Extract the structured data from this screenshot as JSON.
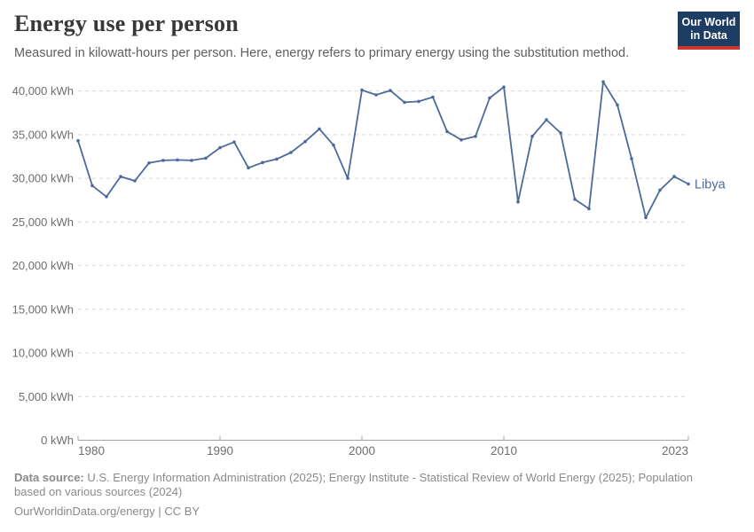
{
  "header": {
    "title": "Energy use per person",
    "subtitle": "Measured in kilowatt-hours per person. Here, energy refers to primary energy using the substitution method.",
    "logo": {
      "line1": "Our World",
      "line2": "in Data"
    }
  },
  "chart_data": {
    "type": "line",
    "title": "Energy use per person",
    "unit": "kWh",
    "xlim": [
      1980,
      2023
    ],
    "ylim": [
      0,
      40000
    ],
    "grid": "horizontal-dashed",
    "legend": "end-of-line-label",
    "x_ticks": [
      1980,
      1990,
      2000,
      2010,
      2023
    ],
    "x_tick_labels": [
      "1980",
      "1990",
      "2000",
      "2010",
      "2023"
    ],
    "y_tick_values": [
      0,
      5000,
      10000,
      15000,
      20000,
      25000,
      30000,
      35000,
      40000
    ],
    "y_tick_labels": [
      "0 kWh",
      "5,000 kWh",
      "10,000 kWh",
      "15,000 kWh",
      "20,000 kWh",
      "25,000 kWh",
      "30,000 kWh",
      "35,000 kWh",
      "40,000 kWh"
    ],
    "series": [
      {
        "name": "Libya",
        "color": "#4C6A9C",
        "x": [
          1980,
          1981,
          1982,
          1983,
          1984,
          1985,
          1986,
          1987,
          1988,
          1989,
          1990,
          1991,
          1992,
          1993,
          1994,
          1995,
          1996,
          1997,
          1998,
          1999,
          2000,
          2001,
          2002,
          2003,
          2004,
          2005,
          2006,
          2007,
          2008,
          2009,
          2010,
          2011,
          2012,
          2013,
          2014,
          2015,
          2016,
          2017,
          2018,
          2019,
          2020,
          2021,
          2022,
          2023
        ],
        "values": [
          34300,
          29150,
          27900,
          30200,
          29700,
          31750,
          32050,
          32100,
          32050,
          32300,
          33500,
          34150,
          31200,
          31800,
          32200,
          32950,
          34200,
          35650,
          33800,
          30000,
          40100,
          39550,
          40050,
          38700,
          38800,
          39300,
          35350,
          34400,
          34800,
          39200,
          40450,
          27300,
          34800,
          36700,
          35200,
          27600,
          26500,
          41050,
          38400,
          32250,
          25500,
          28650,
          30200,
          29350
        ]
      }
    ]
  },
  "footer": {
    "datasource_label": "Data source:",
    "datasource_text": " U.S. Energy Information Administration (2025); Energy Institute - Statistical Review of World Energy (2025); Population based on various sources (2024)",
    "license_line": "OurWorldinData.org/energy | CC BY"
  },
  "colors": {
    "series_line": "#4C6A9C",
    "gridline": "#d9d9d9",
    "axis": "#a3a3a3",
    "tick_label": "#6e6e6e",
    "title_text": "#383838",
    "subtitle_text": "#5f5f5f",
    "footer_text": "#8a8a8a",
    "logo_background": "#1d3d63",
    "logo_accent": "#d0342c"
  }
}
